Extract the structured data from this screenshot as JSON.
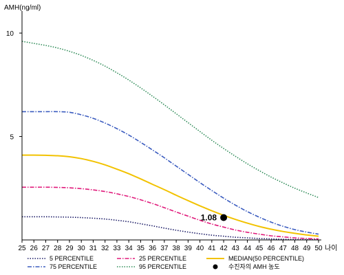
{
  "chart_data": {
    "type": "line",
    "ylabel": "AMH(ng/ml)",
    "xlabel": "나이",
    "x": [
      25,
      26,
      27,
      28,
      29,
      30,
      31,
      32,
      33,
      34,
      35,
      36,
      37,
      38,
      39,
      40,
      41,
      42,
      43,
      44,
      45,
      46,
      47,
      48,
      49,
      50
    ],
    "xlim": [
      25,
      50
    ],
    "ylim": [
      0,
      11
    ],
    "yticks": [
      5,
      10
    ],
    "grid": false,
    "legend_position": "bottom",
    "series": [
      {
        "name": "5 PERCENTILE",
        "color": "#1a1a66",
        "style": "dotted",
        "values": [
          1.12,
          1.12,
          1.12,
          1.11,
          1.1,
          1.08,
          1.05,
          1.01,
          0.95,
          0.88,
          0.78,
          0.68,
          0.57,
          0.47,
          0.38,
          0.3,
          0.23,
          0.18,
          0.13,
          0.1,
          0.07,
          0.05,
          0.03,
          0.02,
          0.015,
          0.01
        ]
      },
      {
        "name": "25 PERCENTILE",
        "color": "#e0187a",
        "style": "dashdot",
        "values": [
          2.55,
          2.55,
          2.55,
          2.54,
          2.52,
          2.48,
          2.42,
          2.34,
          2.23,
          2.1,
          1.94,
          1.76,
          1.56,
          1.35,
          1.15,
          0.95,
          0.77,
          0.62,
          0.48,
          0.37,
          0.28,
          0.2,
          0.15,
          0.1,
          0.07,
          0.05
        ]
      },
      {
        "name": "75 PERCENTILE",
        "color": "#3a5bbf",
        "style": "dashdot",
        "values": [
          6.2,
          6.2,
          6.2,
          6.2,
          6.17,
          6.05,
          5.88,
          5.65,
          5.38,
          5.07,
          4.72,
          4.35,
          3.97,
          3.57,
          3.17,
          2.77,
          2.39,
          2.02,
          1.68,
          1.37,
          1.1,
          0.86,
          0.66,
          0.5,
          0.38,
          0.28
        ]
      },
      {
        "name": "MEDIAN(50 PERCENTILE)",
        "color": "#f2c200",
        "style": "solid",
        "values": [
          4.1,
          4.1,
          4.09,
          4.07,
          4.02,
          3.93,
          3.8,
          3.63,
          3.42,
          3.2,
          2.95,
          2.69,
          2.43,
          2.16,
          1.9,
          1.65,
          1.41,
          1.19,
          0.99,
          0.81,
          0.65,
          0.52,
          0.41,
          0.32,
          0.24,
          0.18
        ]
      },
      {
        "name": "95 PERCENTILE",
        "color": "#2e8b57",
        "style": "dotted",
        "values": [
          9.6,
          9.5,
          9.4,
          9.28,
          9.12,
          8.92,
          8.68,
          8.4,
          8.08,
          7.73,
          7.35,
          6.95,
          6.53,
          6.1,
          5.67,
          5.24,
          4.82,
          4.42,
          4.04,
          3.68,
          3.35,
          3.04,
          2.76,
          2.5,
          2.27,
          2.05
        ]
      }
    ],
    "point": {
      "legend_label": "수진자의 AMH 농도",
      "label": "1.08",
      "x": 42,
      "y": 1.08,
      "color": "#000000"
    }
  }
}
